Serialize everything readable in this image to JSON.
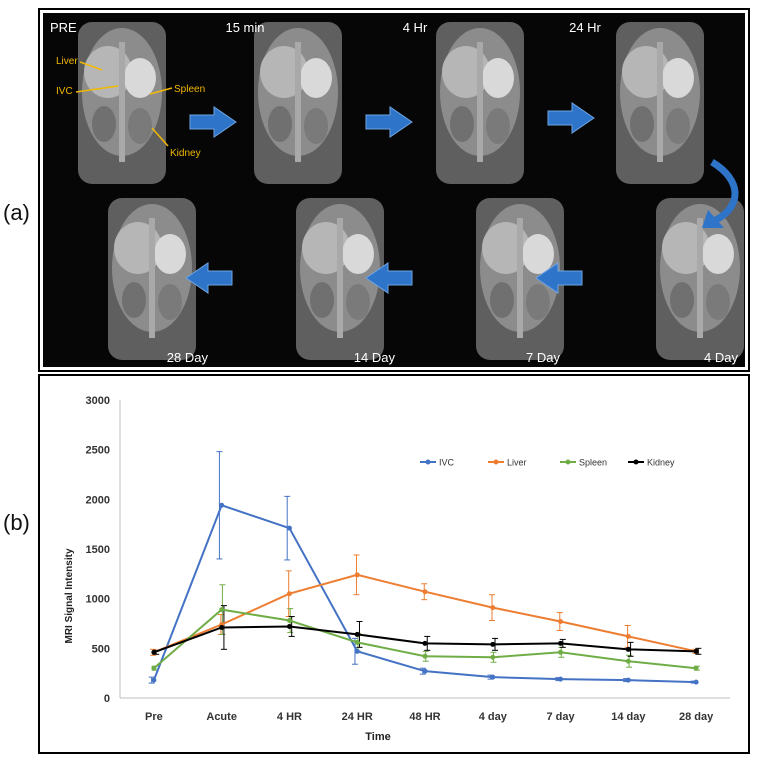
{
  "panel_labels": {
    "a": "(a)",
    "b": "(b)"
  },
  "mri_panel": {
    "timepoints": [
      "PRE",
      "15 min",
      "4 Hr",
      "24 Hr",
      "4 Day",
      "7 Day",
      "14 Day",
      "28 Day"
    ],
    "anatomy_labels": [
      "Liver",
      "IVC",
      "Spleen",
      "Kidney"
    ],
    "arrow_color": "#2e74c9",
    "annotation_color": "#f2b800"
  },
  "chart_data": {
    "type": "line",
    "title": "",
    "xlabel": "Time",
    "ylabel": "MRI Signal Intensity",
    "categories": [
      "Pre",
      "Acute",
      "4 HR",
      "24 HR",
      "48 HR",
      "4 day",
      "7 day",
      "14 day",
      "28 day"
    ],
    "ylim": [
      0,
      3000
    ],
    "yticks": [
      0,
      500,
      1000,
      1500,
      2000,
      2500,
      3000
    ],
    "grid": false,
    "legend_position": "top-right",
    "series": [
      {
        "name": "IVC",
        "color": "#4472c4",
        "values": [
          180,
          1940,
          1710,
          470,
          270,
          210,
          190,
          180,
          160
        ],
        "errors": [
          30,
          540,
          320,
          130,
          30,
          20,
          15,
          15,
          10
        ]
      },
      {
        "name": "Liver",
        "color": "#ed7d31",
        "values": [
          460,
          740,
          1050,
          1240,
          1070,
          910,
          770,
          620,
          470
        ],
        "errors": [
          30,
          100,
          230,
          200,
          80,
          130,
          90,
          110,
          20
        ]
      },
      {
        "name": "Spleen",
        "color": "#70ad47",
        "values": [
          300,
          890,
          780,
          560,
          420,
          410,
          460,
          370,
          300
        ],
        "errors": [
          20,
          250,
          120,
          90,
          50,
          50,
          50,
          60,
          20
        ]
      },
      {
        "name": "Kidney",
        "color": "#000000",
        "values": [
          460,
          710,
          720,
          640,
          550,
          540,
          550,
          490,
          470
        ],
        "errors": [
          20,
          220,
          100,
          130,
          70,
          60,
          40,
          70,
          30
        ]
      }
    ]
  }
}
